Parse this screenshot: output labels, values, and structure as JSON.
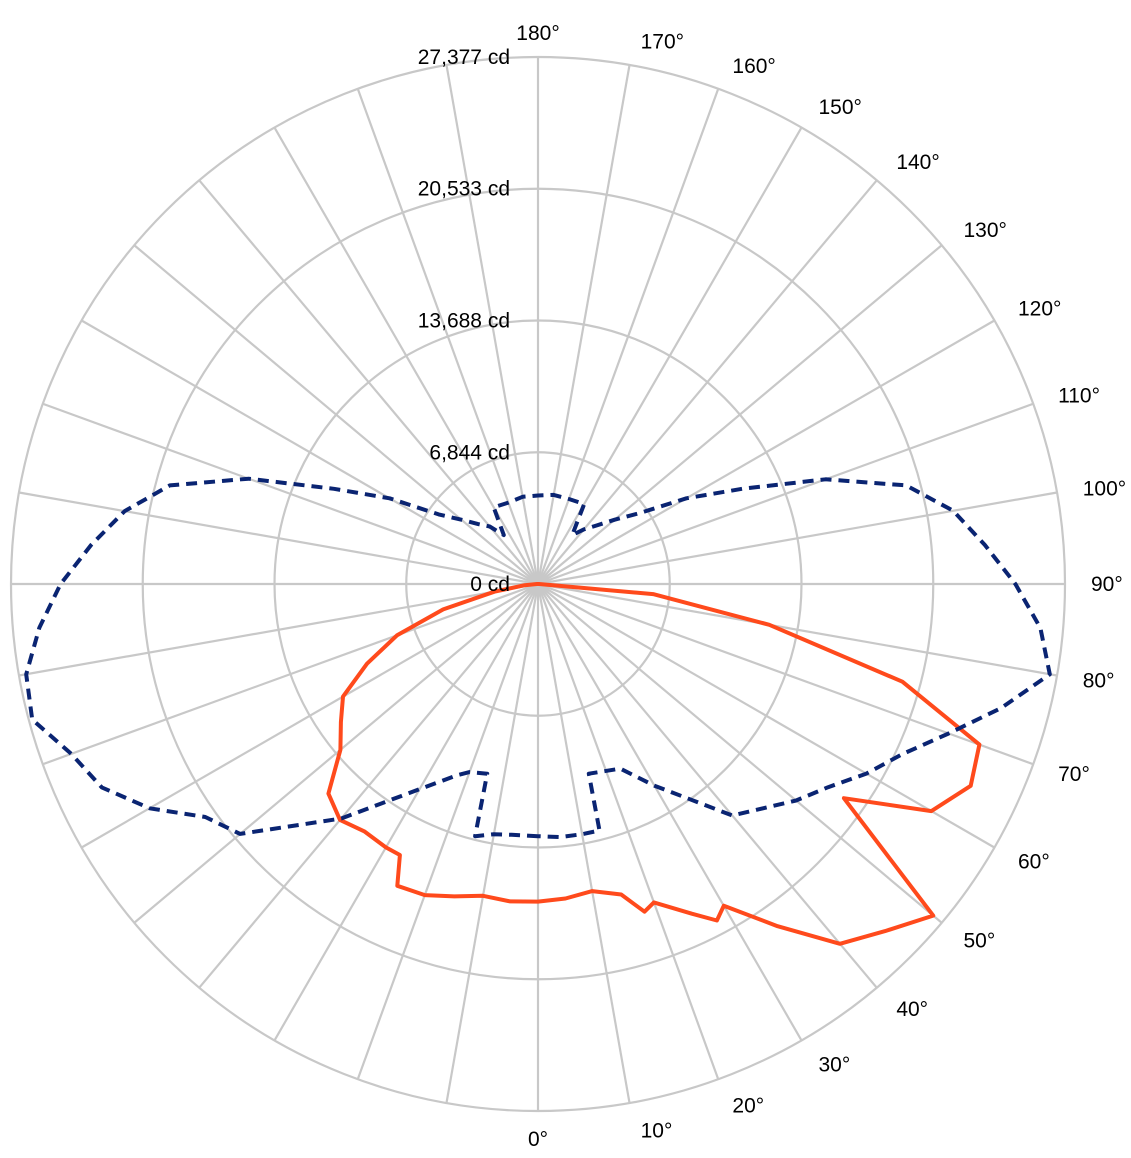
{
  "chart_data": {
    "type": "polar-line",
    "angle_labels": [
      "0°",
      "10°",
      "20°",
      "30°",
      "40°",
      "50°",
      "60°",
      "70°",
      "80°",
      "90°",
      "100°",
      "110°",
      "120°",
      "130°",
      "140°",
      "150°",
      "160°",
      "170°",
      "180°"
    ],
    "radial_ticks": [
      {
        "value": 0,
        "label": "0 cd"
      },
      {
        "value": 6844,
        "label": "6,844 cd"
      },
      {
        "value": 13688,
        "label": "13,688 cd"
      },
      {
        "value": 20533,
        "label": "20,533 cd"
      },
      {
        "value": 27377,
        "label": "27,377 cd"
      }
    ],
    "r_max": 27377,
    "grid": true,
    "legend": "none",
    "series": [
      {
        "color": "#FF4A1C",
        "style": "solid",
        "points": [
          {
            "side": "left",
            "angle": 0,
            "value": 16500
          },
          {
            "side": "left",
            "angle": 5,
            "value": 16550
          },
          {
            "side": "left",
            "angle": 10,
            "value": 16450
          },
          {
            "side": "left",
            "angle": 15,
            "value": 16800
          },
          {
            "side": "left",
            "angle": 20,
            "value": 17200
          },
          {
            "side": "left",
            "angle": 25,
            "value": 17300
          },
          {
            "side": "left",
            "angle": 27,
            "value": 15800
          },
          {
            "side": "left",
            "angle": 30,
            "value": 15800
          },
          {
            "side": "left",
            "angle": 35,
            "value": 15700
          },
          {
            "side": "left",
            "angle": 40,
            "value": 16000
          },
          {
            "side": "left",
            "angle": 45,
            "value": 15400
          },
          {
            "side": "left",
            "angle": 50,
            "value": 13400
          },
          {
            "side": "left",
            "angle": 55,
            "value": 12500
          },
          {
            "side": "left",
            "angle": 60,
            "value": 11700
          },
          {
            "side": "left",
            "angle": 65,
            "value": 9800
          },
          {
            "side": "left",
            "angle": 70,
            "value": 7800
          },
          {
            "side": "left",
            "angle": 75,
            "value": 5100
          },
          {
            "side": "left",
            "angle": 80,
            "value": 2300
          },
          {
            "side": "left",
            "angle": 85,
            "value": 700
          },
          {
            "side": "left",
            "angle": 90,
            "value": 50
          },
          {
            "side": "right",
            "angle": 90,
            "value": 50
          },
          {
            "side": "right",
            "angle": 85,
            "value": 6000
          },
          {
            "side": "right",
            "angle": 80,
            "value": 12200
          },
          {
            "side": "right",
            "angle": 75,
            "value": 19600
          },
          {
            "side": "right",
            "angle": 70,
            "value": 24400
          },
          {
            "side": "right",
            "angle": 65,
            "value": 24800
          },
          {
            "side": "right",
            "angle": 60,
            "value": 23600
          },
          {
            "side": "right",
            "angle": 55,
            "value": 19400
          },
          {
            "side": "right",
            "angle": 50,
            "value": 26800
          },
          {
            "side": "right",
            "angle": 45,
            "value": 25500
          },
          {
            "side": "right",
            "angle": 40,
            "value": 24400
          },
          {
            "side": "right",
            "angle": 35,
            "value": 21700
          },
          {
            "side": "right",
            "angle": 30,
            "value": 19300
          },
          {
            "side": "right",
            "angle": 28,
            "value": 19800
          },
          {
            "side": "right",
            "angle": 25,
            "value": 18900
          },
          {
            "side": "right",
            "angle": 20,
            "value": 17600
          },
          {
            "side": "right",
            "angle": 18,
            "value": 17900
          },
          {
            "side": "right",
            "angle": 15,
            "value": 16700
          },
          {
            "side": "right",
            "angle": 10,
            "value": 16200
          },
          {
            "side": "right",
            "angle": 5,
            "value": 16400
          },
          {
            "side": "right",
            "angle": 0,
            "value": 16500
          }
        ]
      },
      {
        "color": "#0A2472",
        "style": "dashed",
        "points": [
          {
            "side": "left",
            "angle": 0,
            "value": 13100
          },
          {
            "side": "left",
            "angle": 6,
            "value": 13100
          },
          {
            "side": "left",
            "angle": 10,
            "value": 13200
          },
          {
            "side": "left",
            "angle": 14,
            "value": 13500
          },
          {
            "side": "left",
            "angle": 15,
            "value": 10200
          },
          {
            "side": "left",
            "angle": 20,
            "value": 10400
          },
          {
            "side": "left",
            "angle": 23,
            "value": 10800
          },
          {
            "side": "left",
            "angle": 30,
            "value": 12300
          },
          {
            "side": "left",
            "angle": 40,
            "value": 15900
          },
          {
            "side": "left",
            "angle": 50,
            "value": 20200
          },
          {
            "side": "left",
            "angle": 55,
            "value": 21100
          },
          {
            "side": "left",
            "angle": 60,
            "value": 23300
          },
          {
            "side": "left",
            "angle": 65,
            "value": 25000
          },
          {
            "side": "left",
            "angle": 70,
            "value": 25800
          },
          {
            "side": "left",
            "angle": 75,
            "value": 27200
          },
          {
            "side": "left",
            "angle": 80,
            "value": 27000
          },
          {
            "side": "left",
            "angle": 85,
            "value": 26000
          },
          {
            "side": "left",
            "angle": 90,
            "value": 24800
          },
          {
            "side": "left",
            "angle": 95,
            "value": 23300
          },
          {
            "side": "left",
            "angle": 100,
            "value": 21800
          },
          {
            "side": "left",
            "angle": 105,
            "value": 19800
          },
          {
            "side": "left",
            "angle": 110,
            "value": 16000
          },
          {
            "side": "left",
            "angle": 115,
            "value": 11700
          },
          {
            "side": "left",
            "angle": 120,
            "value": 8900
          },
          {
            "side": "left",
            "angle": 125,
            "value": 6300
          },
          {
            "side": "left",
            "angle": 130,
            "value": 5200
          },
          {
            "side": "left",
            "angle": 135,
            "value": 4400
          },
          {
            "side": "left",
            "angle": 140,
            "value": 3900
          },
          {
            "side": "left",
            "angle": 145,
            "value": 3100
          },
          {
            "side": "left",
            "angle": 150,
            "value": 4600
          },
          {
            "side": "left",
            "angle": 160,
            "value": 4500
          },
          {
            "side": "left",
            "angle": 170,
            "value": 4600
          },
          {
            "side": "left",
            "angle": 180,
            "value": 4600
          },
          {
            "side": "right",
            "angle": 170,
            "value": 4700
          },
          {
            "side": "right",
            "angle": 160,
            "value": 4700
          },
          {
            "side": "right",
            "angle": 150,
            "value": 4800
          },
          {
            "side": "right",
            "angle": 145,
            "value": 3100
          },
          {
            "side": "right",
            "angle": 140,
            "value": 3700
          },
          {
            "side": "right",
            "angle": 135,
            "value": 4300
          },
          {
            "side": "right",
            "angle": 130,
            "value": 5200
          },
          {
            "side": "right",
            "angle": 125,
            "value": 6400
          },
          {
            "side": "right",
            "angle": 120,
            "value": 8900
          },
          {
            "side": "right",
            "angle": 115,
            "value": 11700
          },
          {
            "side": "right",
            "angle": 110,
            "value": 15900
          },
          {
            "side": "right",
            "angle": 105,
            "value": 19800
          },
          {
            "side": "right",
            "angle": 100,
            "value": 21900
          },
          {
            "side": "right",
            "angle": 95,
            "value": 23300
          },
          {
            "side": "right",
            "angle": 90,
            "value": 24800
          },
          {
            "side": "right",
            "angle": 85,
            "value": 26200
          },
          {
            "side": "right",
            "angle": 80,
            "value": 27000
          },
          {
            "side": "right",
            "angle": 75,
            "value": 24900
          },
          {
            "side": "right",
            "angle": 70,
            "value": 22700
          },
          {
            "side": "right",
            "angle": 65,
            "value": 20900
          },
          {
            "side": "right",
            "angle": 60,
            "value": 19700
          },
          {
            "side": "right",
            "angle": 55,
            "value": 18400
          },
          {
            "side": "right",
            "angle": 50,
            "value": 17500
          },
          {
            "side": "right",
            "angle": 40,
            "value": 15700
          },
          {
            "side": "right",
            "angle": 30,
            "value": 12100
          },
          {
            "side": "right",
            "angle": 24,
            "value": 10500
          },
          {
            "side": "right",
            "angle": 19,
            "value": 10300
          },
          {
            "side": "right",
            "angle": 15,
            "value": 10200
          },
          {
            "side": "right",
            "angle": 14,
            "value": 13200
          },
          {
            "side": "right",
            "angle": 10,
            "value": 13200
          },
          {
            "side": "right",
            "angle": 5,
            "value": 13200
          },
          {
            "side": "right",
            "angle": 0,
            "value": 13100
          }
        ]
      }
    ]
  }
}
